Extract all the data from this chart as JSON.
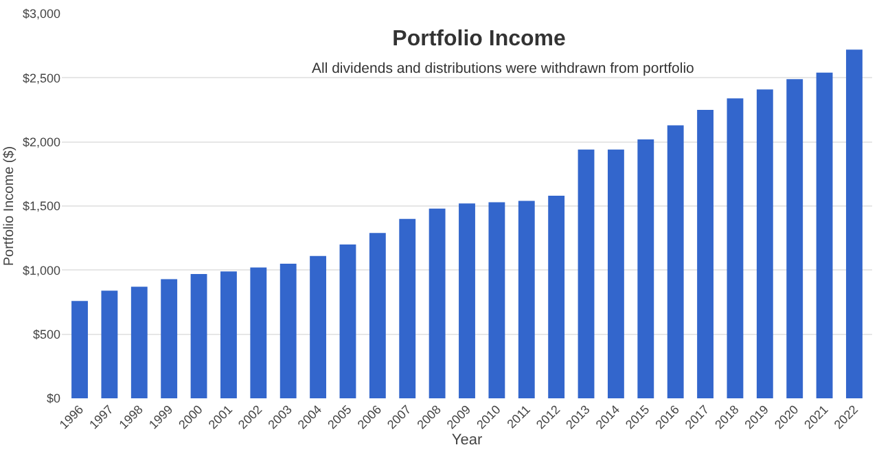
{
  "chart_data": {
    "type": "bar",
    "title": "Portfolio Income",
    "subtitle": "All dividends and distributions were withdrawn from portfolio",
    "xlabel": "Year",
    "ylabel": "Portfolio Income ($)",
    "categories": [
      "1996",
      "1997",
      "1998",
      "1999",
      "2000",
      "2001",
      "2002",
      "2003",
      "2004",
      "2005",
      "2006",
      "2007",
      "2008",
      "2009",
      "2010",
      "2011",
      "2012",
      "2013",
      "2014",
      "2015",
      "2016",
      "2017",
      "2018",
      "2019",
      "2020",
      "2021",
      "2022"
    ],
    "values": [
      760,
      840,
      870,
      930,
      970,
      990,
      1020,
      1050,
      1110,
      1200,
      1290,
      1400,
      1480,
      1520,
      1530,
      1540,
      1580,
      1940,
      1940,
      2020,
      2130,
      2250,
      2340,
      2410,
      2490,
      2540,
      2720
    ],
    "color": "#3366cc",
    "ylim": [
      0,
      3000
    ],
    "yticks": [
      {
        "value": 0,
        "label": "$0"
      },
      {
        "value": 500,
        "label": "$500"
      },
      {
        "value": 1000,
        "label": "$1,000"
      },
      {
        "value": 1500,
        "label": "$1,500"
      },
      {
        "value": 2000,
        "label": "$2,000"
      },
      {
        "value": 2500,
        "label": "$2,500"
      },
      {
        "value": 3000,
        "label": "$3,000"
      }
    ],
    "grid": "y",
    "legend": false
  }
}
